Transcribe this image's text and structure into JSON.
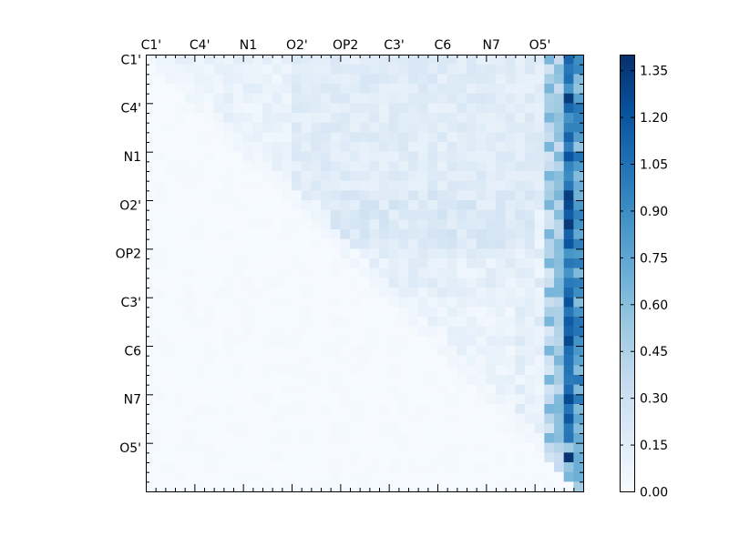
{
  "chart_data": {
    "type": "heatmap",
    "title": "",
    "xlabel": "",
    "ylabel": "",
    "size": 45,
    "x_ticks": [
      "C1'",
      "C4'",
      "N1",
      "O2'",
      "OP2",
      "C3'",
      "C6",
      "N7",
      "O5'"
    ],
    "y_ticks": [
      "C1'",
      "C4'",
      "N1",
      "O2'",
      "OP2",
      "C3'",
      "C6",
      "N7",
      "O5'"
    ],
    "tick_positions": [
      0,
      5,
      10,
      15,
      20,
      25,
      30,
      35,
      40
    ],
    "colorbar": {
      "vmin": 0.0,
      "vmax": 1.4,
      "ticks": [
        "0.00",
        "0.15",
        "0.30",
        "0.45",
        "0.60",
        "0.75",
        "0.90",
        "1.05",
        "1.20",
        "1.35"
      ],
      "colormap": [
        "#f7fbff",
        "#deebf7",
        "#c6dbef",
        "#9ecae1",
        "#6baed6",
        "#4292c6",
        "#2171b5",
        "#08519c",
        "#08306b"
      ]
    },
    "values_note_omitted": false,
    "structure": {
      "upper_triangle_base_range": [
        0.05,
        0.3
      ],
      "strong_columns": [
        42,
        43,
        44
      ],
      "strong_column_range": [
        0.6,
        1.38
      ]
    }
  }
}
